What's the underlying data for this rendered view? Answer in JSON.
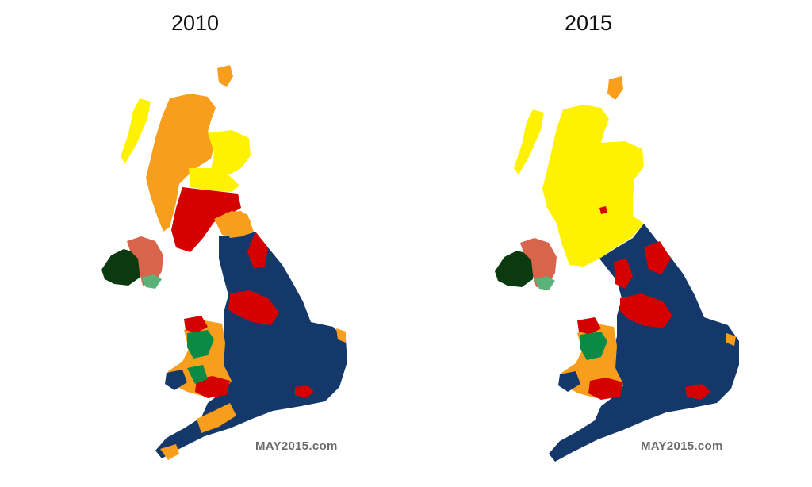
{
  "maps": [
    {
      "title": "2010",
      "watermark": "MAY2015.com",
      "regions": {
        "scotland_main": "liberal-democrat",
        "scotland_north": "liberal-democrat",
        "scotland_central": "labour",
        "england": "conservative",
        "england_north": "labour",
        "wales_south": "labour",
        "wales_west": "plaid-cymru",
        "northern_ireland_west": "sinn-fein",
        "northern_ireland_east": "dup"
      }
    },
    {
      "title": "2015",
      "watermark": "MAY2015.com",
      "regions": {
        "scotland": "snp",
        "england": "conservative",
        "england_north": "labour",
        "wales_south": "labour",
        "wales_west": "plaid-cymru",
        "northern_ireland_west": "sinn-fein",
        "northern_ireland_east": "dup"
      }
    }
  ],
  "colors": {
    "conservative": "#15386b",
    "labour": "#d50000",
    "liberal-democrat": "#f99d1c",
    "snp": "#fff200",
    "plaid-cymru": "#0a8a45",
    "sinn-fein": "#0b3a10",
    "dup": "#d8644c",
    "sdlp": "#5cb37a"
  }
}
